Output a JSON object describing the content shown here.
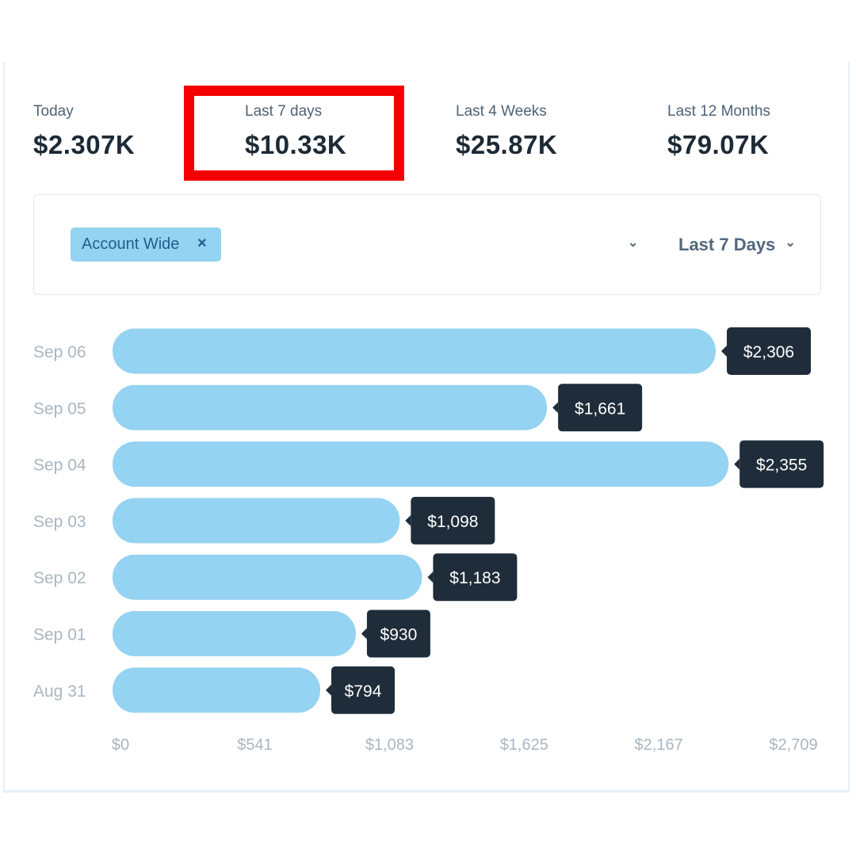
{
  "stats": [
    {
      "label": "Today",
      "value": "$2.307K"
    },
    {
      "label": "Last 7 days",
      "value": "$10.33K"
    },
    {
      "label": "Last 4 Weeks",
      "value": "$25.87K"
    },
    {
      "label": "Last 12 Months",
      "value": "$79.07K"
    }
  ],
  "filter": {
    "chip_label": "Account Wide",
    "chip_remove": "×",
    "range_label": "Last 7 Days"
  },
  "colors": {
    "bar": "#94d3f1",
    "tooltip": "#1f2d3a",
    "highlight": "#f50000"
  },
  "chart_data": {
    "type": "bar",
    "orientation": "horizontal",
    "categories": [
      "Sep 06",
      "Sep 05",
      "Sep 04",
      "Sep 03",
      "Sep 02",
      "Sep 01",
      "Aug 31"
    ],
    "values": [
      2306,
      1661,
      2355,
      1098,
      1183,
      930,
      794
    ],
    "data_labels": [
      "$2,306",
      "$1,661",
      "$2,355",
      "$1,098",
      "$1,183",
      "$930",
      "$794"
    ],
    "xticks": [
      0,
      541,
      1083,
      1625,
      2167,
      2709
    ],
    "xtick_labels": [
      "$0",
      "$541",
      "$1,083",
      "$1,625",
      "$2,167",
      "$2,709"
    ],
    "xlim": [
      0,
      2709
    ]
  }
}
